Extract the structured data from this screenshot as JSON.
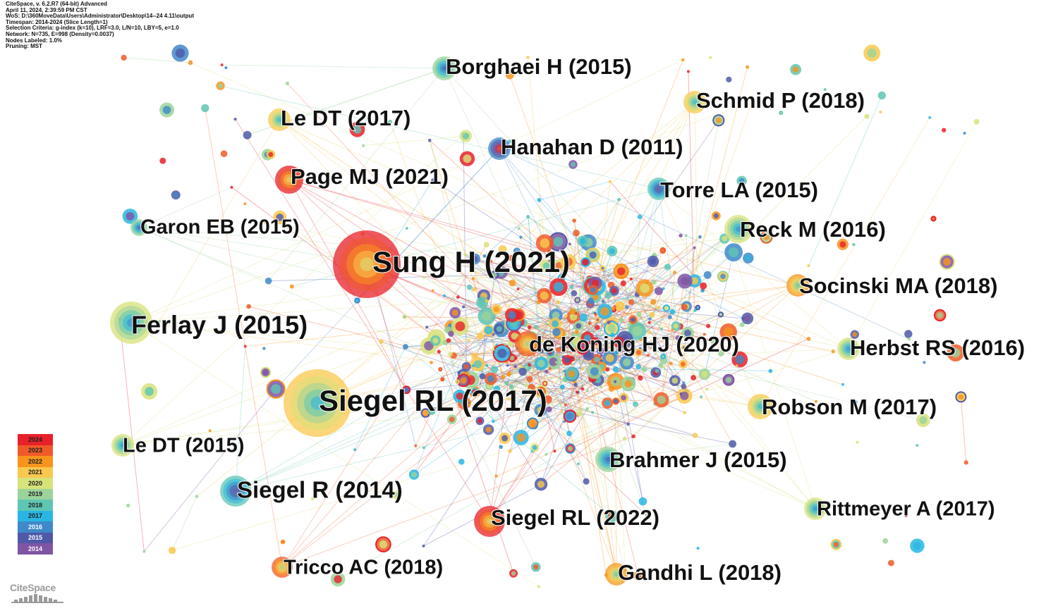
{
  "header": {
    "lines": [
      "CiteSpace, v. 6.2.R7 (64-bit) Advanced",
      "April 11, 2024, 2:39:59 PM CST",
      "WoS: D:\\360MoveData\\Users\\Administrator\\Desktop\\14--24 4.11\\output",
      "Timespan: 2014-2024 (Slice Length=1)",
      "Selection Criteria: g-index (k=10), LRF=3.0, L/N=10, LBY=5, e=1.0",
      "Network: N=735, E=998 (Density=0.0037)",
      "Nodes Labeled: 1.0%",
      "Pruning: MST"
    ]
  },
  "year_colors": {
    "2024": "#e8202a",
    "2023": "#f05a28",
    "2022": "#f7941d",
    "2021": "#f9c84e",
    "2020": "#d8e27a",
    "2019": "#9bd39a",
    "2018": "#5fc6b4",
    "2017": "#29b6e3",
    "2016": "#3f88c9",
    "2015": "#4f59a8",
    "2014": "#7e55a3"
  },
  "legend": {
    "years": [
      "2024",
      "2023",
      "2022",
      "2021",
      "2020",
      "2019",
      "2018",
      "2017",
      "2016",
      "2015",
      "2014"
    ]
  },
  "labeled_nodes": [
    {
      "label": "Sung H (2021)",
      "size": "xlarge",
      "color": "#e8202a"
    },
    {
      "label": "Siegel RL (2017)",
      "size": "xlarge",
      "color": "#f9c84e"
    },
    {
      "label": "Ferlay J (2015)",
      "size": "large",
      "color": "#d8e27a"
    },
    {
      "label": "Borghaei H (2015)",
      "size": "medium",
      "color": "#9bd39a"
    },
    {
      "label": "Le DT (2017)",
      "size": "medium",
      "color": "#f9c84e"
    },
    {
      "label": "Schmid P (2018)",
      "size": "medium",
      "color": "#f9c84e"
    },
    {
      "label": "Hanahan D (2011)",
      "size": "medium",
      "color": "#3f88c9"
    },
    {
      "label": "Page MJ (2021)",
      "size": "medium",
      "color": "#e8202a"
    },
    {
      "label": "Torre LA (2015)",
      "size": "medium",
      "color": "#5fc6b4"
    },
    {
      "label": "Garon EB (2015)",
      "size": "medium",
      "color": "#9bd39a"
    },
    {
      "label": "Reck M (2016)",
      "size": "medium",
      "color": "#d8e27a"
    },
    {
      "label": "Socinski MA (2018)",
      "size": "medium",
      "color": "#f7941d"
    },
    {
      "label": "de Koning HJ (2020)",
      "size": "medium",
      "color": "#f05a28"
    },
    {
      "label": "Herbst RS (2016)",
      "size": "medium",
      "color": "#d8e27a"
    },
    {
      "label": "Robson M (2017)",
      "size": "medium",
      "color": "#f9c84e"
    },
    {
      "label": "Le DT (2015)",
      "size": "medium",
      "color": "#d8e27a"
    },
    {
      "label": "Brahmer J (2015)",
      "size": "medium",
      "color": "#9bd39a"
    },
    {
      "label": "Siegel R (2014)",
      "size": "medium",
      "color": "#5fc6b4"
    },
    {
      "label": "Siegel RL (2022)",
      "size": "medium",
      "color": "#e8202a"
    },
    {
      "label": "Rittmeyer A (2017)",
      "size": "medium",
      "color": "#d8e27a"
    },
    {
      "label": "Tricco AC (2018)",
      "size": "medium",
      "color": "#f05a28"
    },
    {
      "label": "Gandhi L (2018)",
      "size": "medium",
      "color": "#f7941d"
    }
  ],
  "logo": {
    "text": "CiteSpace"
  }
}
